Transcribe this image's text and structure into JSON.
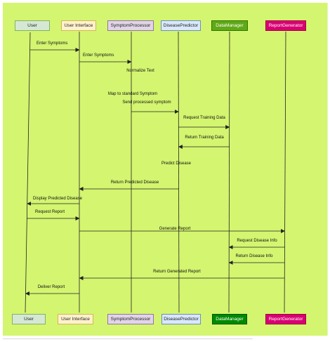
{
  "actors": [
    {
      "name": "User",
      "fill": "#d5e8d4",
      "stroke": "#82b366",
      "text_color": "#222222"
    },
    {
      "name": "User Interface",
      "fill": "#fff2cc",
      "stroke": "#d6b656",
      "text_color": "#222222"
    },
    {
      "name": "SymptomProcessor",
      "fill": "#e1d5e7",
      "stroke": "#9673a6",
      "text_color": "#222222"
    },
    {
      "name": "DiseasePredictor",
      "fill": "#dae8fc",
      "stroke": "#6c8ebf",
      "text_color": "#222222"
    },
    {
      "name": "DataManager",
      "fill": "#60a917",
      "stroke": "#2d7600",
      "text_color": "#ffffff"
    },
    {
      "name": "ReportGenerator",
      "fill": "#d80073",
      "stroke": "#a50040",
      "text_color": "#ffffff"
    }
  ],
  "footer_actors": [
    {
      "name": "User",
      "fill": "#d5e8d4",
      "stroke": "#82b366",
      "text_color": "#222222"
    },
    {
      "name": "User Interface",
      "fill": "#fff2cc",
      "stroke": "#d6b656",
      "text_color": "#222222"
    },
    {
      "name": "SymptomProcessor",
      "fill": "#e1d5e7",
      "stroke": "#9673a6",
      "text_color": "#222222"
    },
    {
      "name": "DiseasePredictor",
      "fill": "#dae8fc",
      "stroke": "#6c8ebf",
      "text_color": "#222222"
    },
    {
      "name": "DataManager",
      "fill": "#008a00",
      "stroke": "#005700",
      "text_color": "#ffffff"
    },
    {
      "name": "ReportGenerator",
      "fill": "#d80073",
      "stroke": "#a50040",
      "text_color": "#ffffff"
    }
  ],
  "messages": [
    {
      "label": "Enter Symptoms",
      "from": "User",
      "to": "User Interface"
    },
    {
      "label": "Enter Symptoms",
      "from": "User Interface",
      "to": "SymptomProcessor"
    },
    {
      "label": "Normalize Text",
      "from": "SymptomProcessor",
      "to": "SymptomProcessor"
    },
    {
      "label": "Map to standard Symptom",
      "from": "SymptomProcessor",
      "to": "SymptomProcessor"
    },
    {
      "label": "Send processed symptom",
      "from": "SymptomProcessor",
      "to": "DiseasePredictor"
    },
    {
      "label": "Request Training Data",
      "from": "DiseasePredictor",
      "to": "DataManager"
    },
    {
      "label": "Return Training Data",
      "from": "DataManager",
      "to": "DiseasePredictor"
    },
    {
      "label": "Predict Disease",
      "from": "DiseasePredictor",
      "to": "DiseasePredictor"
    },
    {
      "label": "Return Predicted Disease",
      "from": "DiseasePredictor",
      "to": "User Interface"
    },
    {
      "label": "Display Predicted Disease",
      "from": "User Interface",
      "to": "User"
    },
    {
      "label": "Request Report",
      "from": "User",
      "to": "User Interface"
    },
    {
      "label": "Generate Report",
      "from": "User Interface",
      "to": "ReportGenerator"
    },
    {
      "label": "Request Disease Info",
      "from": "ReportGenerator",
      "to": "DataManager"
    },
    {
      "label": "Return Disease Info",
      "from": "ReportGenerator",
      "to": "DataManager"
    },
    {
      "label": "Return  Generated Report",
      "from": "ReportGenerator",
      "to": "User Interface"
    },
    {
      "label": "Deliver Report",
      "from": "User Interface",
      "to": "User"
    }
  ],
  "colors": {
    "background": "#d4f570",
    "line": "#222222"
  }
}
